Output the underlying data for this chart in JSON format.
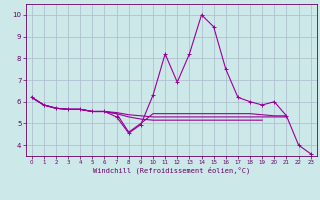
{
  "xlabel": "Windchill (Refroidissement éolien,°C)",
  "x_values": [
    0,
    1,
    2,
    3,
    4,
    5,
    6,
    7,
    8,
    9,
    10,
    11,
    12,
    13,
    14,
    15,
    16,
    17,
    18,
    19,
    20,
    21,
    22,
    23
  ],
  "series": [
    {
      "y": [
        6.2,
        5.85,
        5.7,
        5.65,
        5.65,
        5.55,
        5.55,
        5.45,
        4.6,
        5.0,
        5.45,
        5.45,
        5.45,
        5.45,
        5.45,
        5.45,
        5.45,
        5.45,
        5.45,
        5.4,
        5.35,
        5.35,
        null,
        null
      ],
      "color": "#990099",
      "linewidth": 0.8,
      "marker": null
    },
    {
      "y": [
        6.2,
        5.85,
        5.7,
        5.65,
        5.65,
        5.55,
        5.55,
        5.3,
        4.55,
        4.95,
        6.3,
        8.2,
        6.9,
        8.2,
        10.0,
        9.45,
        7.5,
        6.2,
        6.0,
        5.85,
        6.0,
        5.35,
        4.0,
        3.6
      ],
      "color": "#990099",
      "linewidth": 0.8,
      "marker": "+"
    },
    {
      "y": [
        6.2,
        5.85,
        5.7,
        5.65,
        5.65,
        5.55,
        5.55,
        5.5,
        5.4,
        5.35,
        5.3,
        5.3,
        5.3,
        5.3,
        5.3,
        5.3,
        5.3,
        5.3,
        5.3,
        5.3,
        5.3,
        5.3,
        null,
        null
      ],
      "color": "#990099",
      "linewidth": 0.8,
      "marker": null
    },
    {
      "y": [
        6.2,
        5.85,
        5.7,
        5.65,
        5.65,
        5.55,
        5.55,
        5.45,
        5.3,
        5.2,
        5.15,
        5.15,
        5.15,
        5.15,
        5.15,
        5.15,
        5.15,
        5.15,
        5.15,
        5.15,
        null,
        null,
        null,
        null
      ],
      "color": "#990099",
      "linewidth": 0.8,
      "marker": null
    }
  ],
  "ylim": [
    3.5,
    10.5
  ],
  "xlim": [
    -0.5,
    23.5
  ],
  "yticks": [
    4,
    5,
    6,
    7,
    8,
    9,
    10
  ],
  "xticks": [
    0,
    1,
    2,
    3,
    4,
    5,
    6,
    7,
    8,
    9,
    10,
    11,
    12,
    13,
    14,
    15,
    16,
    17,
    18,
    19,
    20,
    21,
    22,
    23
  ],
  "bg_color": "#cce8e8",
  "grid_color": "#aabbcc",
  "line_color": "#990099",
  "tick_color": "#660066",
  "label_color": "#660066",
  "spine_color": "#660066"
}
